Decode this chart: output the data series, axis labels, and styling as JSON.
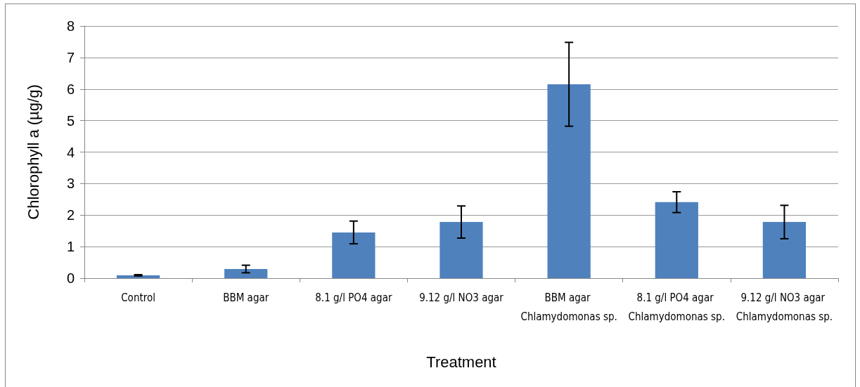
{
  "chart_data": {
    "type": "bar",
    "xlabel": "Treatment",
    "ylabel": "Chlorophyll a (µg/g)",
    "categories": [
      "Control",
      "BBM agar",
      "8.1 g/l PO4 agar",
      "9.12 g/l NO3 agar",
      "BBM agar Chlamydomonas sp.",
      "8.1 g/l PO4 agar Chlamydomonas sp.",
      "9.12 g/l NO3 agar Chlamydomonas sp."
    ],
    "values": [
      0.09,
      0.29,
      1.45,
      1.78,
      6.15,
      2.41,
      1.78
    ],
    "errors": [
      0.02,
      0.12,
      0.36,
      0.51,
      1.33,
      0.33,
      0.53
    ],
    "color": "#4f81bd",
    "ylim": [
      0,
      8
    ],
    "yticks": [
      0,
      1,
      2,
      3,
      4,
      5,
      6,
      7,
      8
    ],
    "grid": "y"
  }
}
